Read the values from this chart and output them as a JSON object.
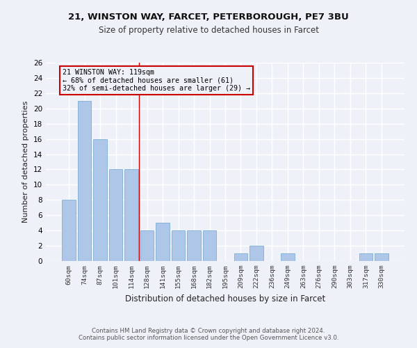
{
  "title1": "21, WINSTON WAY, FARCET, PETERBOROUGH, PE7 3BU",
  "title2": "Size of property relative to detached houses in Farcet",
  "xlabel": "Distribution of detached houses by size in Farcet",
  "ylabel": "Number of detached properties",
  "categories": [
    "60sqm",
    "74sqm",
    "87sqm",
    "101sqm",
    "114sqm",
    "128sqm",
    "141sqm",
    "155sqm",
    "168sqm",
    "182sqm",
    "195sqm",
    "209sqm",
    "222sqm",
    "236sqm",
    "249sqm",
    "263sqm",
    "276sqm",
    "290sqm",
    "303sqm",
    "317sqm",
    "330sqm"
  ],
  "values": [
    8,
    21,
    16,
    12,
    12,
    4,
    5,
    4,
    4,
    4,
    0,
    1,
    2,
    0,
    1,
    0,
    0,
    0,
    0,
    1,
    1
  ],
  "bar_color": "#aec6e8",
  "bar_edge_color": "#7aafd4",
  "property_line_x": 4.5,
  "annotation_line1": "21 WINSTON WAY: 119sqm",
  "annotation_line2": "← 68% of detached houses are smaller (61)",
  "annotation_line3": "32% of semi-detached houses are larger (29) →",
  "annotation_box_color": "#cc0000",
  "ylim": [
    0,
    26
  ],
  "yticks": [
    0,
    2,
    4,
    6,
    8,
    10,
    12,
    14,
    16,
    18,
    20,
    22,
    24,
    26
  ],
  "footer1": "Contains HM Land Registry data © Crown copyright and database right 2024.",
  "footer2": "Contains public sector information licensed under the Open Government Licence v3.0.",
  "bg_color": "#eef2f8",
  "title1_fontsize": 9.5,
  "title2_fontsize": 8.5
}
